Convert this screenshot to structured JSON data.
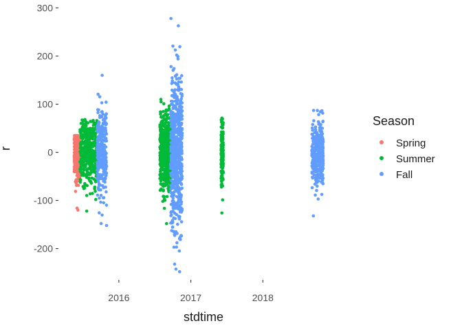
{
  "chart_data": {
    "type": "scatter",
    "title": "",
    "xlabel": "stdtime",
    "ylabel": "r",
    "xlim": [
      2015.18,
      2019.2
    ],
    "ylim": [
      -262,
      305
    ],
    "x_ticks": [
      2016,
      2017,
      2018
    ],
    "x_tick_labels": [
      "2016",
      "2017",
      "2018"
    ],
    "y_ticks": [
      -200,
      -100,
      0,
      100,
      200,
      300
    ],
    "y_tick_labels": [
      "-200",
      "-100",
      "0",
      "100",
      "200",
      "300"
    ],
    "grid": false,
    "legend": {
      "title": "Season",
      "placement": "right",
      "entries": [
        "Spring",
        "Summer",
        "Fall"
      ]
    },
    "colors": {
      "Spring": "#F8766D",
      "Summer": "#00BA38",
      "Fall": "#619CFF"
    },
    "series": [
      {
        "name": "Spring",
        "color": "#F8766D",
        "clusters": [
          {
            "x_start": 2015.38,
            "x_end": 2015.46,
            "y_min": -120,
            "y_max": 35,
            "points": 260
          }
        ]
      },
      {
        "name": "Summer",
        "color": "#00BA38",
        "clusters": [
          {
            "x_start": 2015.46,
            "x_end": 2015.7,
            "y_min": -122,
            "y_max": 68,
            "points": 420
          },
          {
            "x_start": 2016.57,
            "x_end": 2016.72,
            "y_min": -148,
            "y_max": 110,
            "points": 550
          },
          {
            "x_start": 2017.42,
            "x_end": 2017.45,
            "y_min": -126,
            "y_max": 71,
            "points": 170
          }
        ]
      },
      {
        "name": "Fall",
        "color": "#619CFF",
        "clusters": [
          {
            "x_start": 2015.7,
            "x_end": 2015.83,
            "y_min": -152,
            "y_max": 160,
            "points": 300
          },
          {
            "x_start": 2016.72,
            "x_end": 2016.88,
            "y_min": -248,
            "y_max": 278,
            "points": 650
          },
          {
            "x_start": 2018.68,
            "x_end": 2018.84,
            "y_min": -132,
            "y_max": 87,
            "points": 340
          }
        ]
      }
    ]
  }
}
